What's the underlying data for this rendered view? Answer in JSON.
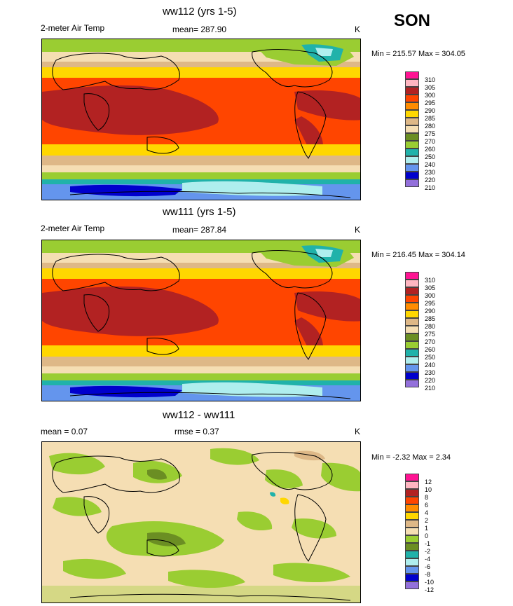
{
  "season": "SON",
  "panels": [
    {
      "title": "ww112 (yrs 1-5)",
      "left_label": "2-meter Air Temp",
      "center_label": "mean= 287.90",
      "units": "K",
      "minmax": "Min = 215.57 Max = 304.05",
      "colorbar_labels": [
        "310",
        "305",
        "300",
        "295",
        "290",
        "285",
        "280",
        "275",
        "270",
        "260",
        "250",
        "240",
        "230",
        "220",
        "210"
      ]
    },
    {
      "title": "ww111 (yrs 1-5)",
      "left_label": "2-meter Air Temp",
      "center_label": "mean= 287.84",
      "units": "K",
      "minmax": "Min = 216.45 Max = 304.14",
      "colorbar_labels": [
        "310",
        "305",
        "300",
        "295",
        "290",
        "285",
        "280",
        "275",
        "270",
        "260",
        "250",
        "240",
        "230",
        "220",
        "210"
      ]
    },
    {
      "title": "ww112 - ww111",
      "left_label": "mean =   0.07",
      "center_label": "rmse =   0.37",
      "units": "K",
      "minmax": "Min =  -2.32 Max =   2.34",
      "colorbar_labels": [
        "12",
        "10",
        "8",
        "6",
        "4",
        "2",
        "1",
        "0",
        "-1",
        "-2",
        "-4",
        "-6",
        "-8",
        "-10",
        "-12"
      ]
    }
  ],
  "colors": {
    "temp_scale": [
      "#ff1493",
      "#ffb6c1",
      "#b22222",
      "#ff4500",
      "#ff8c00",
      "#ffd700",
      "#deb887",
      "#f5deb3",
      "#6b8e23",
      "#9acd32",
      "#20b2aa",
      "#afeeee",
      "#6495ed",
      "#0000cd",
      "#9370db"
    ],
    "diff_scale": [
      "#ff1493",
      "#ffb6c1",
      "#b22222",
      "#ff4500",
      "#ff8c00",
      "#ffd700",
      "#deb887",
      "#f5deb3",
      "#9acd32",
      "#6b8e23",
      "#20b2aa",
      "#afeeee",
      "#6495ed",
      "#0000cd",
      "#9370db"
    ],
    "land_outline": "#000000"
  }
}
